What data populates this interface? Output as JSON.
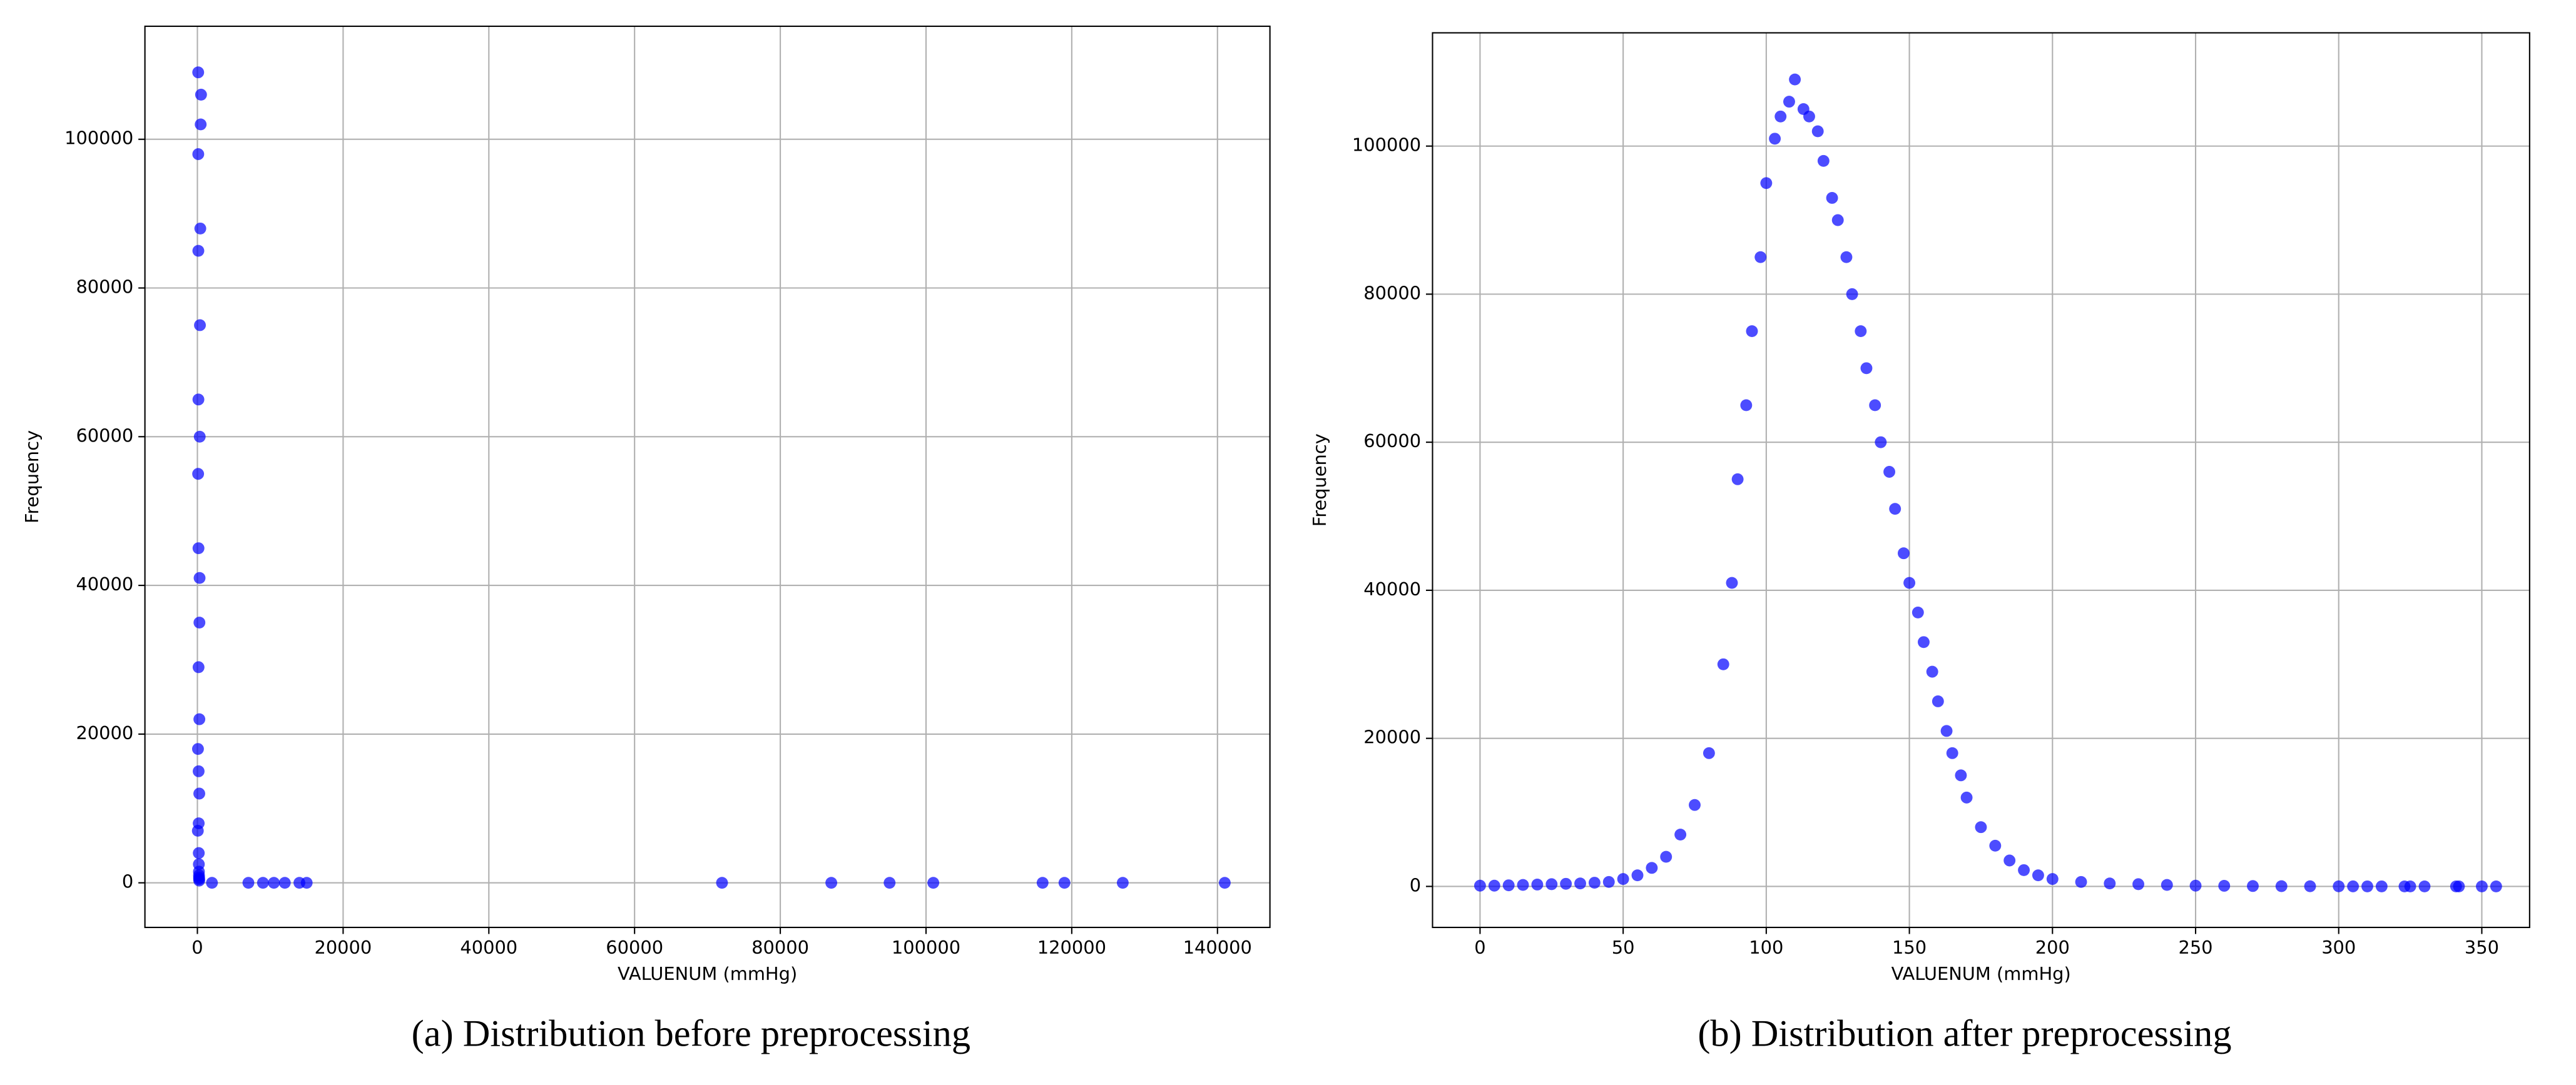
{
  "chart_data": [
    {
      "type": "scatter",
      "caption": "(a) Distribution before preprocessing",
      "xlabel": "VALUENUM (mmHg)",
      "ylabel": "Frequency",
      "color": "#0000ff",
      "grid": true,
      "xlim": [
        -7200,
        147200
      ],
      "ylim": [
        -6000,
        115200
      ],
      "xticks": [
        0,
        20000,
        40000,
        60000,
        80000,
        100000,
        120000,
        140000
      ],
      "yticks": [
        0,
        20000,
        40000,
        60000,
        80000,
        100000
      ],
      "x": [
        60,
        80,
        100,
        110,
        120,
        130,
        140,
        150,
        160,
        170,
        180,
        190,
        200,
        210,
        220,
        230,
        240,
        250,
        260,
        270,
        280,
        300,
        320,
        350,
        400,
        450,
        500,
        2000,
        7000,
        9000,
        10500,
        12000,
        14000,
        15000,
        72000,
        87000,
        95000,
        101000,
        116000,
        119000,
        127000,
        141000
      ],
      "values": [
        7000,
        18000,
        55000,
        109000,
        98000,
        85000,
        65000,
        45000,
        29000,
        15000,
        8000,
        4000,
        2500,
        1500,
        1000,
        700,
        500,
        300,
        12000,
        22000,
        35000,
        41000,
        60000,
        75000,
        88000,
        102000,
        106000,
        0,
        0,
        0,
        0,
        0,
        0,
        0,
        0,
        0,
        0,
        0,
        0,
        0,
        0,
        0
      ]
    },
    {
      "type": "scatter",
      "caption": "(b) Distribution after preprocessing",
      "xlabel": "VALUENUM (mmHg)",
      "ylabel": "Frequency",
      "color": "#0000ff",
      "grid": true,
      "xlim": [
        -16.6,
        366.7
      ],
      "ylim": [
        -5540,
        115300
      ],
      "xticks": [
        0,
        50,
        100,
        150,
        200,
        250,
        300,
        350
      ],
      "yticks": [
        0,
        20000,
        40000,
        60000,
        80000,
        100000
      ],
      "x": [
        0,
        5,
        10,
        15,
        20,
        25,
        30,
        35,
        40,
        45,
        50,
        55,
        60,
        65,
        70,
        75,
        80,
        85,
        88,
        90,
        93,
        95,
        98,
        100,
        103,
        105,
        108,
        110,
        113,
        115,
        118,
        120,
        123,
        125,
        128,
        130,
        133,
        135,
        138,
        140,
        143,
        145,
        148,
        150,
        153,
        155,
        158,
        160,
        163,
        165,
        168,
        170,
        175,
        180,
        185,
        190,
        195,
        200,
        210,
        220,
        230,
        240,
        250,
        260,
        270,
        280,
        290,
        300,
        305,
        310,
        315,
        323,
        325,
        330,
        341,
        342,
        350,
        355
      ],
      "values": [
        100,
        100,
        150,
        200,
        250,
        300,
        350,
        400,
        500,
        600,
        1000,
        1500,
        2500,
        4000,
        7000,
        11000,
        18000,
        30000,
        41000,
        55000,
        65000,
        75000,
        85000,
        95000,
        101000,
        104000,
        106000,
        109000,
        105000,
        104000,
        102000,
        98000,
        93000,
        90000,
        85000,
        80000,
        75000,
        70000,
        65000,
        60000,
        56000,
        51000,
        45000,
        41000,
        37000,
        33000,
        29000,
        25000,
        21000,
        18000,
        15000,
        12000,
        8000,
        5500,
        3500,
        2200,
        1500,
        1000,
        600,
        400,
        300,
        200,
        100,
        80,
        50,
        30,
        20,
        10,
        5,
        3,
        2,
        1,
        1,
        1,
        1,
        1,
        1,
        1
      ]
    }
  ]
}
